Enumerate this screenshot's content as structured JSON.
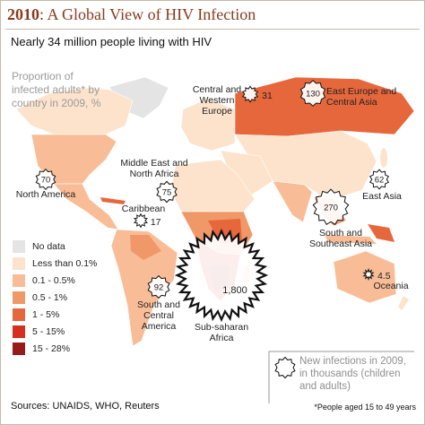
{
  "header": {
    "year": "2010",
    "title": ": A Global View of HIV Infection",
    "subtitle": "Nearly 34 million people living with HIV"
  },
  "legend": {
    "title": "Proportion of infected adults* by country in 2009, %",
    "items": [
      {
        "label": "No data",
        "color": "#e4e4e4"
      },
      {
        "label": "Less than 0.1%",
        "color": "#fde3cc"
      },
      {
        "label": "0.1 - 0.5%",
        "color": "#f8bd97"
      },
      {
        "label": "0.5 - 1%",
        "color": "#f19868"
      },
      {
        "label": "1 - 5%",
        "color": "#e7673c"
      },
      {
        "label": "5 - 15%",
        "color": "#d5301f"
      },
      {
        "label": "15 - 28%",
        "color": "#961b1b"
      }
    ]
  },
  "regions": [
    {
      "name": "Central and Western Europe",
      "value": 31
    },
    {
      "name": "East Europe and Central Asia",
      "value": 130
    },
    {
      "name": "Middle East and North Africa",
      "value": 75
    },
    {
      "name": "North America",
      "value": 70
    },
    {
      "name": "East Asia",
      "value": 62
    },
    {
      "name": "Caribbean",
      "value": 17
    },
    {
      "name": "South and Southeast Asia",
      "value": 270
    },
    {
      "name": "Sub-saharan Africa",
      "value": 1800,
      "value_label": "1,800"
    },
    {
      "name": "South and Central America",
      "value": 92
    },
    {
      "name": "Oceania",
      "value": 4.5
    }
  ],
  "key": {
    "label": "New infections in 2009, in thousands (children and adults)"
  },
  "footer": {
    "sources": "Sources: UNAIDS, WHO, Reuters",
    "note": "*People aged 15 to 49 years"
  }
}
